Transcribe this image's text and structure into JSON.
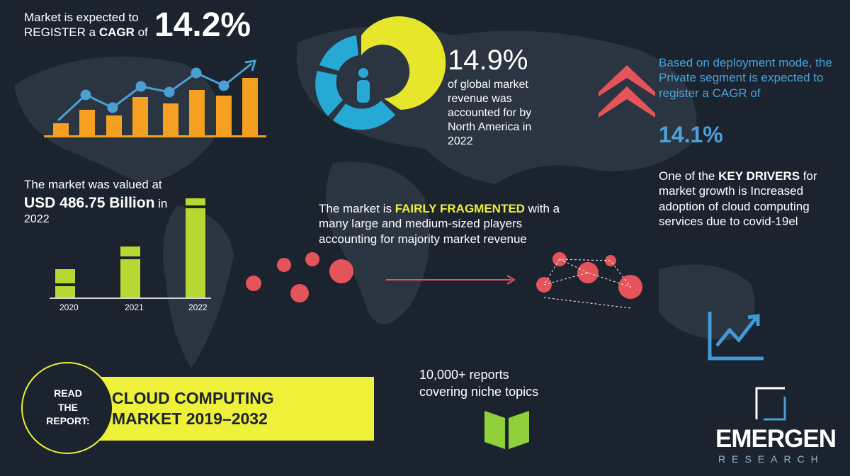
{
  "cagr": {
    "line1": "Market is expected to",
    "line2_pre": "REGISTER a ",
    "line2_bold": "CAGR",
    "line2_post": " of",
    "value": "14.2%"
  },
  "north_america": {
    "value": "14.9%",
    "text": "of global market revenue was accounted for by North America in 2022"
  },
  "deployment": {
    "text": "Based on deployment mode, the Private segment is expected to register a CAGR of",
    "value": "14.1%"
  },
  "drivers": {
    "pre": "One of the ",
    "bold": "KEY DRIVERS",
    "post": " for market growth is Increased adoption of cloud computing services due to covid-19el"
  },
  "valuation": {
    "intro": "The market was valued at",
    "value": "USD 486.75 Billion",
    "suffix": " in",
    "year": "2022",
    "bar_labels": [
      "2020",
      "2021",
      "2022"
    ]
  },
  "fragmentation": {
    "pre": "The market is ",
    "highlight": "FAIRLY FRAGMENTED",
    "post": " with a many large and medium-sized players accounting for majority market revenue"
  },
  "report": {
    "cta": "READ THE REPORT:",
    "title": "CLOUD COMPUTING MARKET 2019–2032"
  },
  "reports": {
    "count": "10,000+ reports",
    "text": "covering niche topics"
  },
  "logo": {
    "name": "EMERGEN",
    "tagline": "RESEARCH"
  }
}
